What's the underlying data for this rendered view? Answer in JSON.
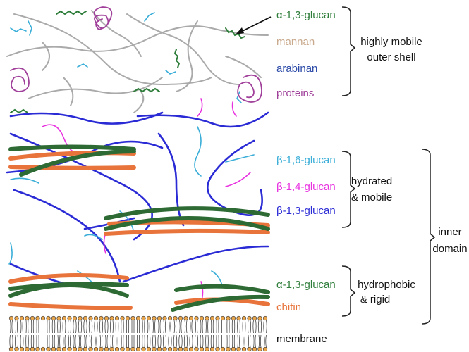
{
  "outer_shell": {
    "labels": [
      "α-1,3-glucan",
      "mannan",
      "arabinan",
      "proteins"
    ],
    "group": [
      "highly mobile",
      "outer shell"
    ]
  },
  "hydrated": {
    "labels": [
      "β-1,6-glucan",
      "β-1,4-glucan",
      "β-1,3-glucan"
    ],
    "group": [
      "hydrated",
      "& mobile"
    ]
  },
  "inner_domain": [
    "inner",
    "domain"
  ],
  "rigid": {
    "labels": [
      "α-1,3-glucan",
      "chitin"
    ],
    "group": [
      "hydrophobic",
      "& rigid"
    ]
  },
  "membrane": "membrane"
}
